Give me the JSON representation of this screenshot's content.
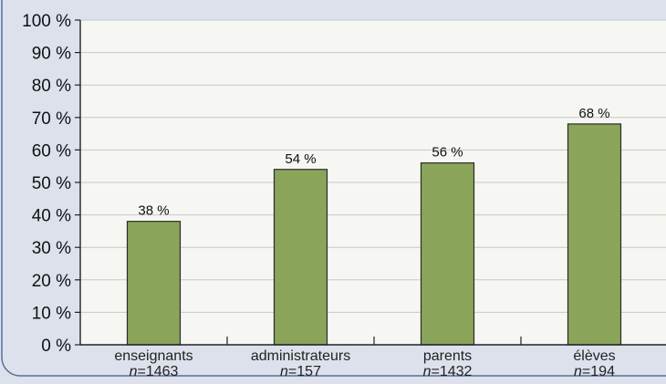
{
  "chart_data": {
    "type": "bar",
    "categories": [
      "enseignants",
      "administrateurs",
      "parents",
      "élèves"
    ],
    "sample_sizes": [
      "1463",
      "157",
      "1432",
      "194"
    ],
    "sample_prefix": "n",
    "values": [
      38,
      54,
      56,
      68
    ],
    "value_labels": [
      "38 %",
      "54 %",
      "56 %",
      "68 %"
    ],
    "ylim": [
      0,
      100
    ],
    "yticks": [
      0,
      10,
      20,
      30,
      40,
      50,
      60,
      70,
      80,
      90,
      100
    ],
    "ytick_labels": [
      "0 %",
      "10 %",
      "20 %",
      "30 %",
      "40 %",
      "50 %",
      "60 %",
      "70 %",
      "80 %",
      "90 %",
      "100 %"
    ],
    "grid": true,
    "colors": {
      "bar_fill": "#8aa55a",
      "bar_stroke": "#2b2b2b",
      "plot_bg": "#f6f6f2",
      "frame_bg": "#dde1ec",
      "frame_border": "#5a6e9a",
      "grid": "#c8c8c8",
      "axis": "#222222"
    }
  }
}
